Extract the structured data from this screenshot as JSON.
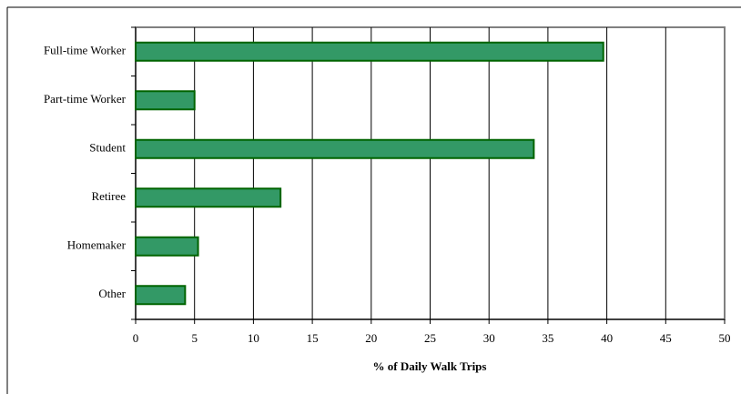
{
  "chart_data": {
    "type": "bar",
    "orientation": "horizontal",
    "categories": [
      "Full-time Worker",
      "Part-time Worker",
      "Student",
      "Retiree",
      "Homemaker",
      "Other"
    ],
    "values": [
      39.7,
      5.0,
      33.8,
      12.3,
      5.3,
      4.2
    ],
    "color": "#339966",
    "xlabel": "% of Daily Walk Trips",
    "xlim": [
      0,
      50
    ],
    "xticks": [
      0,
      5,
      10,
      15,
      20,
      25,
      30,
      35,
      40,
      45,
      50
    ],
    "grid": true
  }
}
